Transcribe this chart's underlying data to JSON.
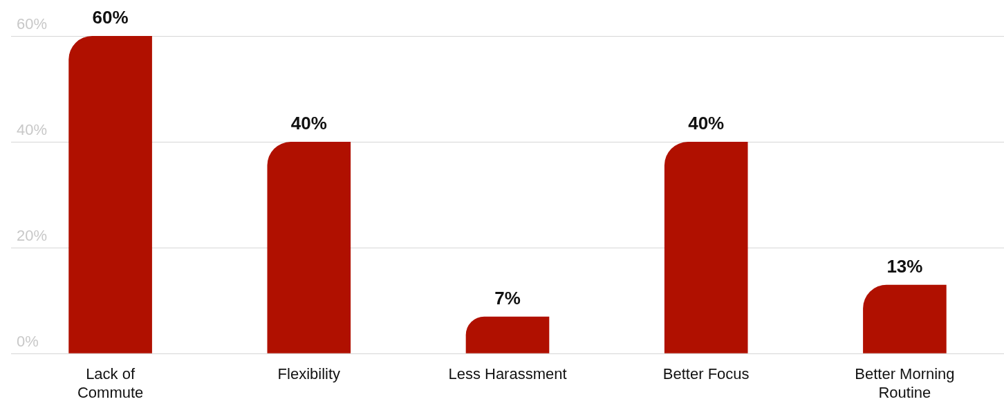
{
  "chart_data": {
    "type": "bar",
    "categories": [
      "Lack of Commute",
      "Flexibility",
      "Less Harassment",
      "Better Focus",
      "Better Morning Routine"
    ],
    "values": [
      60,
      40,
      7,
      40,
      13
    ],
    "color": "#b01000",
    "ylim": [
      0,
      60
    ],
    "yticks": [
      {
        "value": 0,
        "label": "0%"
      },
      {
        "value": 20,
        "label": "20%"
      },
      {
        "value": 40,
        "label": "40%"
      },
      {
        "value": 60,
        "label": "60%"
      }
    ],
    "grid": "y",
    "legend": false,
    "value_labels": [
      "60%",
      "40%",
      "7%",
      "40%",
      "13%"
    ]
  }
}
